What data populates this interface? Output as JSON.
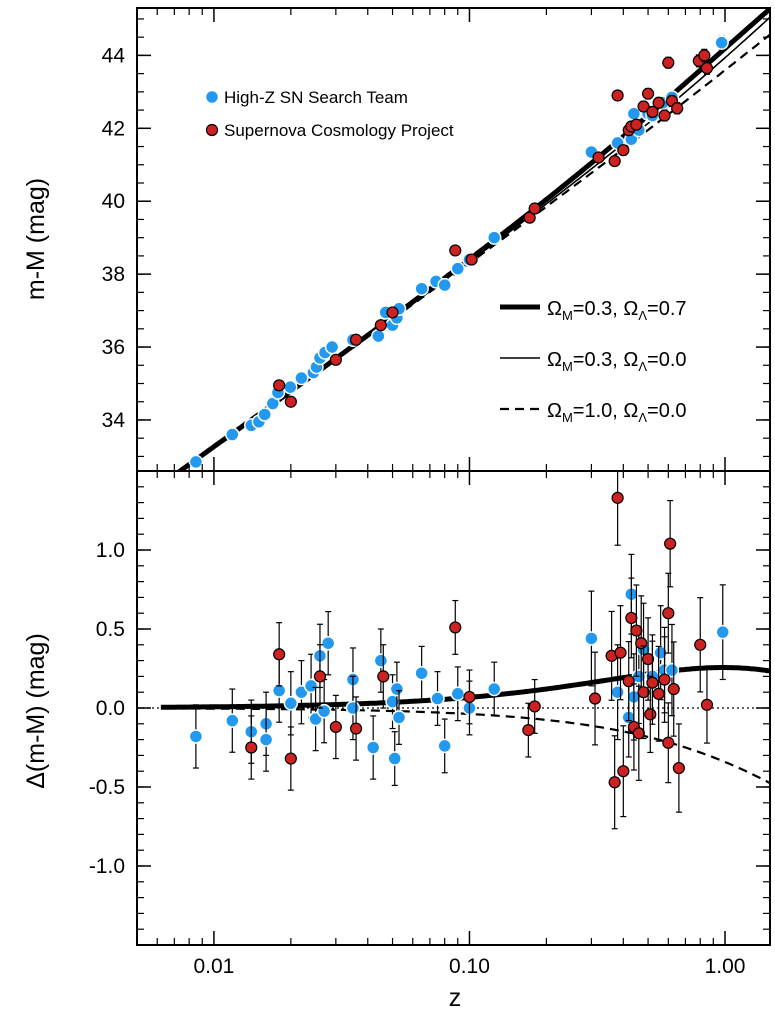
{
  "chart_data": [
    {
      "type": "scatter",
      "panel": "top",
      "xlabel": "",
      "ylabel": "m-M (mag)",
      "xscale": "log",
      "xlim": [
        0.005,
        1.5
      ],
      "ylim": [
        32.6,
        45.3
      ],
      "x_ticks": [
        0.01,
        0.1,
        1.0
      ],
      "y_ticks": [
        34,
        36,
        38,
        40,
        42,
        44
      ],
      "y_tick_labels": [
        "34",
        "36",
        "38",
        "40",
        "42",
        "44"
      ],
      "legend": {
        "placement": "top-left",
        "entries": [
          "High-Z SN Search Team",
          "Supernova Cosmology Project"
        ]
      },
      "model_legend": {
        "placement": "right",
        "entries": [
          {
            "id": "m1",
            "parts": [
              "Ω",
              "M",
              "=0.3, ",
              "Ω",
              "Λ",
              "=0.7"
            ],
            "style": "thick-solid"
          },
          {
            "id": "m2",
            "parts": [
              "Ω",
              "M",
              "=0.3, ",
              "Ω",
              "Λ",
              "=0.0"
            ],
            "style": "thin-solid"
          },
          {
            "id": "m3",
            "parts": [
              "Ω",
              "M",
              "=1.0, ",
              "Ω",
              "Λ",
              "=0.0"
            ],
            "style": "dashed"
          }
        ]
      },
      "series": [
        {
          "name": "High-Z SN Search Team",
          "color": "#2299ee",
          "points": [
            [
              0.0085,
              32.85
            ],
            [
              0.0118,
              33.6
            ],
            [
              0.014,
              33.85
            ],
            [
              0.015,
              33.95
            ],
            [
              0.0158,
              34.15
            ],
            [
              0.017,
              34.45
            ],
            [
              0.0178,
              34.75
            ],
            [
              0.0199,
              34.9
            ],
            [
              0.022,
              35.15
            ],
            [
              0.0245,
              35.3
            ],
            [
              0.0252,
              35.45
            ],
            [
              0.026,
              35.7
            ],
            [
              0.0272,
              35.85
            ],
            [
              0.029,
              36.0
            ],
            [
              0.035,
              36.2
            ],
            [
              0.044,
              36.3
            ],
            [
              0.047,
              36.95
            ],
            [
              0.05,
              36.6
            ],
            [
              0.052,
              36.8
            ],
            [
              0.053,
              37.05
            ],
            [
              0.065,
              37.6
            ],
            [
              0.074,
              37.8
            ],
            [
              0.08,
              37.7
            ],
            [
              0.09,
              38.15
            ],
            [
              0.1,
              38.4
            ],
            [
              0.125,
              39.0
            ],
            [
              0.3,
              41.35
            ],
            [
              0.38,
              41.6
            ],
            [
              0.43,
              41.7
            ],
            [
              0.44,
              42.4
            ],
            [
              0.46,
              41.95
            ],
            [
              0.5,
              42.4
            ],
            [
              0.52,
              42.35
            ],
            [
              0.57,
              42.7
            ],
            [
              0.62,
              42.85
            ],
            [
              0.97,
              44.35
            ]
          ]
        },
        {
          "name": "Supernova Cosmology Project",
          "color": "#cc2222",
          "points": [
            [
              0.018,
              34.95
            ],
            [
              0.02,
              34.5
            ],
            [
              0.03,
              35.65
            ],
            [
              0.036,
              36.2
            ],
            [
              0.045,
              36.6
            ],
            [
              0.05,
              36.95
            ],
            [
              0.088,
              38.65
            ],
            [
              0.102,
              38.4
            ],
            [
              0.172,
              39.55
            ],
            [
              0.18,
              39.8
            ],
            [
              0.32,
              41.2
            ],
            [
              0.37,
              41.1
            ],
            [
              0.38,
              42.9
            ],
            [
              0.4,
              41.4
            ],
            [
              0.42,
              41.95
            ],
            [
              0.43,
              42.05
            ],
            [
              0.45,
              42.1
            ],
            [
              0.48,
              42.6
            ],
            [
              0.5,
              42.95
            ],
            [
              0.52,
              42.45
            ],
            [
              0.55,
              42.7
            ],
            [
              0.58,
              42.35
            ],
            [
              0.6,
              43.8
            ],
            [
              0.62,
              42.75
            ],
            [
              0.65,
              42.55
            ],
            [
              0.79,
              43.85
            ],
            [
              0.83,
              44.0
            ],
            [
              0.85,
              43.65
            ]
          ]
        }
      ]
    },
    {
      "type": "scatter",
      "panel": "bottom",
      "xlabel": "z",
      "ylabel": "Δ(m-M) (mag)",
      "xscale": "log",
      "xlim": [
        0.005,
        1.5
      ],
      "ylim": [
        -1.5,
        1.5
      ],
      "x_ticks": [
        0.01,
        0.1,
        1.0
      ],
      "x_tick_labels": [
        "0.01",
        "0.10",
        "1.00"
      ],
      "y_ticks": [
        -1.0,
        -0.5,
        0.0,
        0.5,
        1.0
      ],
      "y_tick_labels": [
        "-1.0",
        "-0.5",
        "0.0",
        "0.5",
        "1.0"
      ],
      "series": [
        {
          "name": "High-Z SN Search Team",
          "color": "#2299ee",
          "points": [
            [
              0.0085,
              -0.18
            ],
            [
              0.0118,
              -0.08
            ],
            [
              0.014,
              -0.15
            ],
            [
              0.016,
              -0.1
            ],
            [
              0.016,
              -0.2
            ],
            [
              0.018,
              0.11
            ],
            [
              0.02,
              0.03
            ],
            [
              0.022,
              0.1
            ],
            [
              0.024,
              0.14
            ],
            [
              0.025,
              -0.07
            ],
            [
              0.026,
              0.33
            ],
            [
              0.027,
              -0.02
            ],
            [
              0.028,
              0.41
            ],
            [
              0.035,
              0.18
            ],
            [
              0.035,
              0.0
            ],
            [
              0.042,
              -0.25
            ],
            [
              0.045,
              0.3
            ],
            [
              0.05,
              0.04
            ],
            [
              0.051,
              -0.32
            ],
            [
              0.052,
              0.12
            ],
            [
              0.053,
              -0.06
            ],
            [
              0.065,
              0.22
            ],
            [
              0.075,
              0.06
            ],
            [
              0.08,
              -0.24
            ],
            [
              0.09,
              0.09
            ],
            [
              0.1,
              0.0
            ],
            [
              0.125,
              0.12
            ],
            [
              0.3,
              0.44
            ],
            [
              0.38,
              0.1
            ],
            [
              0.42,
              -0.06
            ],
            [
              0.43,
              0.72
            ],
            [
              0.44,
              0.07
            ],
            [
              0.46,
              0.2
            ],
            [
              0.48,
              0.37
            ],
            [
              0.52,
              0.2
            ],
            [
              0.56,
              0.35
            ],
            [
              0.58,
              0.24
            ],
            [
              0.62,
              0.24
            ],
            [
              0.98,
              0.48
            ]
          ]
        },
        {
          "name": "Supernova Cosmology Project",
          "color": "#cc2222",
          "points": [
            [
              0.014,
              -0.25
            ],
            [
              0.018,
              0.34
            ],
            [
              0.02,
              -0.32
            ],
            [
              0.026,
              0.2
            ],
            [
              0.03,
              -0.12
            ],
            [
              0.036,
              -0.13
            ],
            [
              0.046,
              0.2
            ],
            [
              0.088,
              0.51
            ],
            [
              0.1,
              0.07
            ],
            [
              0.17,
              -0.14
            ],
            [
              0.18,
              0.01
            ],
            [
              0.31,
              0.06
            ],
            [
              0.36,
              0.33
            ],
            [
              0.37,
              -0.47
            ],
            [
              0.38,
              1.33
            ],
            [
              0.39,
              0.35
            ],
            [
              0.4,
              -0.4
            ],
            [
              0.42,
              0.17
            ],
            [
              0.43,
              0.57
            ],
            [
              0.44,
              -0.12
            ],
            [
              0.45,
              0.49
            ],
            [
              0.46,
              -0.16
            ],
            [
              0.47,
              0.41
            ],
            [
              0.48,
              0.1
            ],
            [
              0.5,
              0.31
            ],
            [
              0.51,
              -0.04
            ],
            [
              0.52,
              0.16
            ],
            [
              0.55,
              0.09
            ],
            [
              0.58,
              0.18
            ],
            [
              0.6,
              0.6
            ],
            [
              0.6,
              -0.22
            ],
            [
              0.61,
              1.04
            ],
            [
              0.63,
              0.12
            ],
            [
              0.66,
              -0.38
            ],
            [
              0.8,
              0.4
            ],
            [
              0.85,
              0.02
            ]
          ]
        }
      ]
    }
  ]
}
